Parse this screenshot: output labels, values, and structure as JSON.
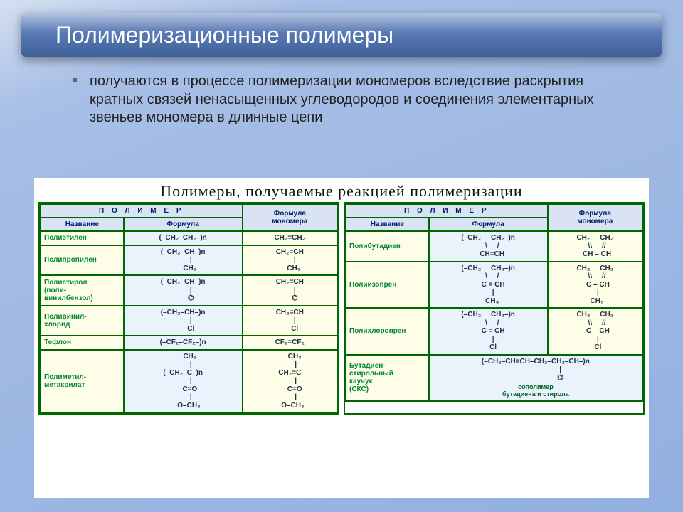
{
  "title": "Полимеризационные полимеры",
  "body": "получаются в процессе полимеризации мономеров вследствие раскрытия кратных связей ненасыщенных углеводородов и соединения элементарных звеньев мономера в длинные цепи",
  "caption": "Полимеры, получаемые реакцией полимеризации",
  "headers": {
    "polymer_spaced": "П О Л И М Е Р",
    "name": "Название",
    "formula": "Формула",
    "monomer": "Формула\nмономера"
  },
  "colors": {
    "border": "#006600",
    "header_bg": "#d9e3f3",
    "name_bg": "#fefde8",
    "formula_bg": "#eaf2fb",
    "monomer_bg": "#fefde8"
  },
  "left_rows": [
    {
      "name": "Полиэтилен",
      "formula": "(–CH₂–CH₂–)n",
      "monomer": "CH₂=CH₂"
    },
    {
      "name": "Полипропилен",
      "formula": "(–CH₂–CH–)n\n        |\n       CH₃",
      "monomer": "CH₂=CH\n     |\n    CH₃"
    },
    {
      "name": "Полистирол\n(поли-\nвинилбензол)",
      "formula": "(–CH₂–CH–)n\n        |\n        ⌬",
      "monomer": "CH₂=CH\n     |\n     ⌬"
    },
    {
      "name": "Поливинил-\nхлорид",
      "formula": "(–CH₂–CH–)n\n        |\n        Cl",
      "monomer": "CH₂=CH\n     |\n     Cl"
    },
    {
      "name": "Тефлон",
      "formula": "(–CF₂–CF₂–)n",
      "monomer": "CF₂=CF₂"
    },
    {
      "name": "Полиметил-\nметакрилат",
      "formula": "       CH₃\n        |\n(–CH₂–C–)n\n        |\n       C=O\n        |\n      O–CH₃",
      "monomer": "     CH₃\n      |\nCH₂=C\n      |\n     C=O\n      |\n   O–CH₃"
    }
  ],
  "right_rows": [
    {
      "name": "Полибутадиен",
      "formula": "(–CH₂     CH₂–)n\n    \\     /\n    CH=CH",
      "monomer": "CH₂     CH₂\n  \\\\     //\n  CH – CH"
    },
    {
      "name": "Полиизопрен",
      "formula": "(–CH₂     CH₂–)n\n    \\     /\n     C = CH\n     |\n    CH₃",
      "monomer": "CH₂     CH₂\n  \\\\     //\n   C – CH\n   |\n  CH₃"
    },
    {
      "name": "Полихлоропрен",
      "formula": "(–CH₂     CH₂–)n\n    \\     /\n     C = CH\n     |\n     Cl",
      "monomer": "CH₂     CH₂\n  \\\\     //\n   C – CH\n   |\n   Cl"
    },
    {
      "name": "Бутадиен-\nстирольный\nкаучук\n(СКС)",
      "formula": "(–CH₂–CH=CH–CH₂–CH₂–CH–)n\n                         |\n                         ⌬",
      "monomer": "сополимер\nбутадиена и стирола",
      "span": true
    }
  ],
  "footer_right": "сополимер\nбутадиена и стирола"
}
